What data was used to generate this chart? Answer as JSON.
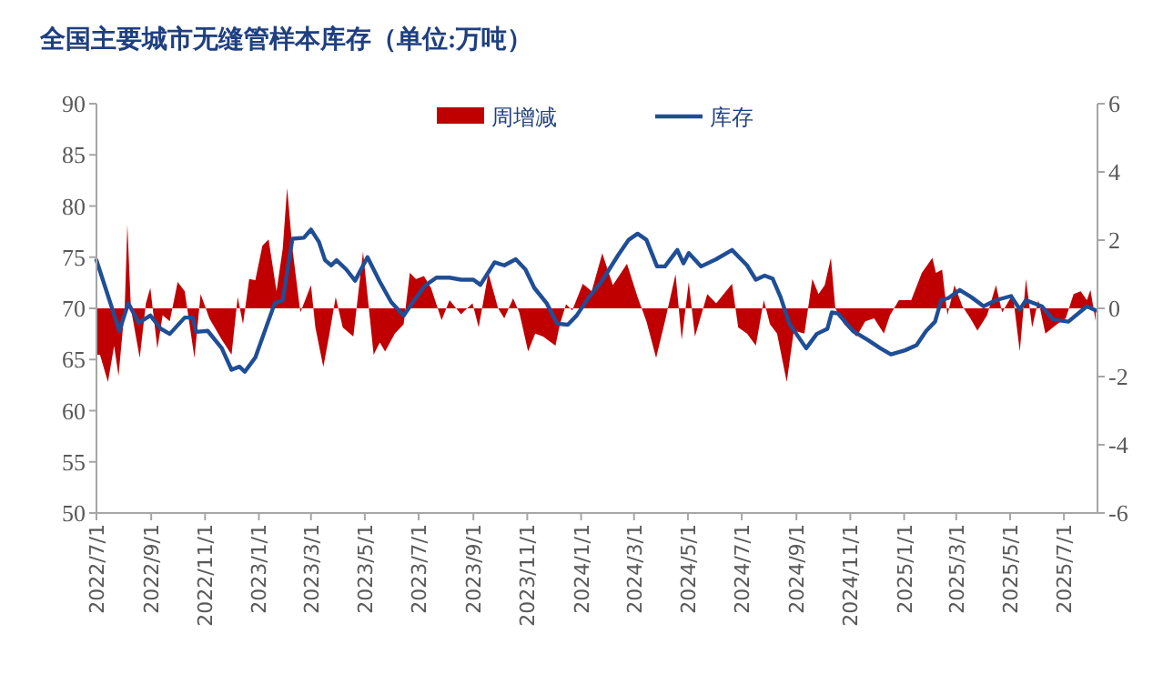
{
  "chart_data": {
    "type": "line",
    "title": "全国主要城市无缝管样本库存（单位:万吨）",
    "xlim": [
      "2022-07-01",
      "2025-08-08"
    ],
    "xticks": [
      {
        "value": "2022-07-01",
        "label": "2022/7/1"
      },
      {
        "value": "2022-09-01",
        "label": "2022/9/1"
      },
      {
        "value": "2022-11-01",
        "label": "2022/11/1"
      },
      {
        "value": "2023-01-01",
        "label": "2023/1/1"
      },
      {
        "value": "2023-03-01",
        "label": "2023/3/1"
      },
      {
        "value": "2023-05-01",
        "label": "2023/5/1"
      },
      {
        "value": "2023-07-01",
        "label": "2023/7/1"
      },
      {
        "value": "2023-09-01",
        "label": "2023/9/1"
      },
      {
        "value": "2023-11-01",
        "label": "2023/11/1"
      },
      {
        "value": "2024-01-01",
        "label": "2024/1/1"
      },
      {
        "value": "2024-03-01",
        "label": "2024/3/1"
      },
      {
        "value": "2024-05-01",
        "label": "2024/5/1"
      },
      {
        "value": "2024-07-01",
        "label": "2024/7/1"
      },
      {
        "value": "2024-09-01",
        "label": "2024/9/1"
      },
      {
        "value": "2024-11-01",
        "label": "2024/11/1"
      },
      {
        "value": "2025-01-01",
        "label": "2025/1/1"
      },
      {
        "value": "2025-03-01",
        "label": "2025/3/1"
      },
      {
        "value": "2025-05-01",
        "label": "2025/5/1"
      },
      {
        "value": "2025-07-01",
        "label": "2025/7/1"
      }
    ],
    "ylim": [
      50,
      90
    ],
    "yticks": [
      50,
      55,
      60,
      65,
      70,
      75,
      80,
      85,
      90
    ],
    "y2lim": [
      -6,
      6
    ],
    "y2ticks": [
      -6,
      -4,
      -2,
      0,
      2,
      4,
      6
    ],
    "legend": "top",
    "series": [
      {
        "name": "周增减",
        "type": "area",
        "axis": "y2",
        "color": "#c00000",
        "x": [
          "2022-07-01",
          "2022-07-05",
          "2022-07-14",
          "2022-07-21",
          "2022-07-26",
          "2022-08-02",
          "2022-08-05",
          "2022-08-09",
          "2022-08-19",
          "2022-08-26",
          "2022-08-31",
          "2022-09-08",
          "2022-09-14",
          "2022-09-22",
          "2022-10-01",
          "2022-10-09",
          "2022-10-20",
          "2022-10-27",
          "2022-11-06",
          "2022-11-20",
          "2022-12-01",
          "2022-12-08",
          "2022-12-14",
          "2022-12-21",
          "2022-12-28",
          "2023-01-05",
          "2023-01-12",
          "2023-01-21",
          "2023-01-28",
          "2023-02-02",
          "2023-02-08",
          "2023-02-17",
          "2023-03-01",
          "2023-03-06",
          "2023-03-15",
          "2023-03-22",
          "2023-03-29",
          "2023-04-06",
          "2023-04-18",
          "2023-04-29",
          "2023-05-11",
          "2023-05-18",
          "2023-05-24",
          "2023-06-04",
          "2023-06-14",
          "2023-06-21",
          "2023-06-28",
          "2023-07-07",
          "2023-07-15",
          "2023-07-27",
          "2023-08-05",
          "2023-08-18",
          "2023-08-31",
          "2023-09-07",
          "2023-09-18",
          "2023-09-29",
          "2023-10-06",
          "2023-10-16",
          "2023-10-23",
          "2023-11-02",
          "2023-11-10",
          "2023-11-19",
          "2023-12-03",
          "2023-12-08",
          "2023-12-15",
          "2023-12-22",
          "2024-01-03",
          "2024-01-13",
          "2024-01-25",
          "2024-02-06",
          "2024-02-22",
          "2024-03-05",
          "2024-03-15",
          "2024-03-26",
          "2024-04-05",
          "2024-04-17",
          "2024-04-24",
          "2024-05-02",
          "2024-05-09",
          "2024-05-23",
          "2024-06-02",
          "2024-06-20",
          "2024-06-27",
          "2024-07-07",
          "2024-07-17",
          "2024-07-26",
          "2024-08-02",
          "2024-08-10",
          "2024-08-21",
          "2024-08-29",
          "2024-09-10",
          "2024-09-19",
          "2024-09-26",
          "2024-10-03",
          "2024-10-10",
          "2024-10-15",
          "2024-10-25",
          "2024-11-08",
          "2024-11-18",
          "2024-11-28",
          "2024-12-09",
          "2024-12-16",
          "2024-12-26",
          "2025-01-09",
          "2025-01-21",
          "2025-02-02",
          "2025-02-06",
          "2025-02-13",
          "2025-02-19",
          "2025-02-27",
          "2025-03-08",
          "2025-03-17",
          "2025-03-25",
          "2025-04-05",
          "2025-04-15",
          "2025-04-22",
          "2025-05-04",
          "2025-05-12",
          "2025-05-19",
          "2025-05-26",
          "2025-06-02",
          "2025-06-10",
          "2025-06-23",
          "2025-07-03",
          "2025-07-12",
          "2025-07-20",
          "2025-07-27",
          "2025-07-31",
          "2025-08-06"
        ],
        "values": [
          -1.36,
          -1.36,
          -2.16,
          -1.1,
          -1.98,
          0,
          2.46,
          0,
          -1.45,
          0.15,
          0.6,
          -1.18,
          -0.2,
          -0.38,
          0.77,
          0.5,
          -1.45,
          0.42,
          -0.3,
          -0.92,
          -1.36,
          0.33,
          -0.47,
          0.86,
          0.83,
          1.84,
          2.02,
          0.5,
          1.75,
          3.53,
          1.75,
          -0.12,
          0.68,
          -0.56,
          -1.72,
          -0.74,
          0.33,
          -0.56,
          -0.83,
          1.66,
          -1.36,
          -1.0,
          -1.27,
          -0.74,
          -0.47,
          1.04,
          0.86,
          0.95,
          0.6,
          -0.35,
          0.24,
          -0.17,
          0.15,
          -0.56,
          1.04,
          0,
          -0.29,
          0.29,
          -0.12,
          -1.27,
          -0.74,
          -0.83,
          -1.09,
          -0.47,
          0.12,
          -0.06,
          0.72,
          0.5,
          1.61,
          0.68,
          1.31,
          0.33,
          -0.38,
          -1.45,
          -0.38,
          1.0,
          -0.92,
          0.77,
          -0.83,
          0.42,
          0.15,
          0.72,
          -0.56,
          -0.74,
          -1.09,
          0.24,
          -0.47,
          -0.74,
          -2.16,
          -0.65,
          -0.74,
          0.86,
          0.42,
          0.68,
          1.48,
          0,
          -0.47,
          -0.83,
          -0.38,
          -0.29,
          -0.74,
          -0.2,
          0.24,
          0.24,
          1.04,
          1.48,
          1.04,
          1.13,
          -0.2,
          0.68,
          0.06,
          -0.29,
          -0.65,
          -0.2,
          0.68,
          -0.12,
          0.42,
          -1.27,
          0.86,
          -0.56,
          0.24,
          -0.74,
          -0.47,
          -0.29,
          0.42,
          0.5,
          0.24,
          0.54,
          -0.38
        ]
      },
      {
        "name": "库存",
        "axis": "y",
        "color": "#1f4e96",
        "x": [
          "2022-07-01",
          "2022-07-27",
          "2022-08-06",
          "2022-08-18",
          "2022-08-31",
          "2022-09-12",
          "2022-09-22",
          "2022-10-09",
          "2022-10-18",
          "2022-10-22",
          "2022-11-04",
          "2022-11-20",
          "2022-12-01",
          "2022-12-10",
          "2022-12-16",
          "2022-12-28",
          "2023-01-09",
          "2023-01-19",
          "2023-01-28",
          "2023-02-08",
          "2023-02-21",
          "2023-03-01",
          "2023-03-10",
          "2023-03-17",
          "2023-03-24",
          "2023-03-30",
          "2023-04-10",
          "2023-04-20",
          "2023-05-04",
          "2023-05-18",
          "2023-05-31",
          "2023-06-14",
          "2023-06-26",
          "2023-07-08",
          "2023-07-21",
          "2023-08-05",
          "2023-08-18",
          "2023-09-01",
          "2023-09-09",
          "2023-09-25",
          "2023-10-06",
          "2023-10-19",
          "2023-10-30",
          "2023-11-09",
          "2023-11-23",
          "2023-12-05",
          "2023-12-17",
          "2023-12-27",
          "2024-01-10",
          "2024-01-24",
          "2024-02-12",
          "2024-02-24",
          "2024-03-05",
          "2024-03-15",
          "2024-03-27",
          "2024-04-05",
          "2024-04-19",
          "2024-04-26",
          "2024-05-02",
          "2024-05-16",
          "2024-06-02",
          "2024-06-20",
          "2024-07-07",
          "2024-07-17",
          "2024-07-27",
          "2024-08-05",
          "2024-08-14",
          "2024-08-24",
          "2024-09-12",
          "2024-09-24",
          "2024-10-06",
          "2024-10-11",
          "2024-10-18",
          "2024-11-04",
          "2024-11-21",
          "2024-12-05",
          "2024-12-17",
          "2025-01-02",
          "2025-01-15",
          "2025-01-26",
          "2025-02-05",
          "2025-02-12",
          "2025-02-20",
          "2025-03-05",
          "2025-03-18",
          "2025-04-01",
          "2025-04-15",
          "2025-05-02",
          "2025-05-12",
          "2025-05-19",
          "2025-06-06",
          "2025-06-19",
          "2025-07-06",
          "2025-07-27",
          "2025-08-06"
        ],
        "values": [
          74.7,
          67.8,
          70.5,
          68.6,
          69.3,
          68.0,
          67.5,
          69.1,
          69.1,
          67.7,
          67.8,
          66.1,
          64.0,
          64.3,
          63.8,
          65.2,
          68.1,
          70.5,
          70.8,
          76.8,
          76.9,
          77.7,
          76.5,
          74.7,
          74.2,
          74.7,
          73.8,
          72.7,
          75.0,
          72.6,
          70.6,
          69.3,
          70.8,
          72.2,
          73.0,
          73.0,
          72.8,
          72.8,
          72.3,
          74.5,
          74.2,
          74.8,
          73.8,
          72.0,
          70.5,
          68.5,
          68.4,
          69.3,
          71.1,
          72.6,
          75.2,
          76.7,
          77.3,
          76.7,
          74.1,
          74.1,
          75.7,
          74.4,
          75.4,
          74.1,
          74.8,
          75.7,
          74.2,
          72.8,
          73.2,
          72.9,
          71.1,
          68.5,
          66.1,
          67.5,
          68.0,
          69.6,
          69.5,
          67.8,
          66.9,
          66.1,
          65.5,
          65.9,
          66.4,
          67.8,
          68.7,
          70.8,
          71.0,
          71.8,
          71.1,
          70.2,
          70.8,
          71.2,
          69.9,
          70.8,
          70.2,
          68.9,
          68.7,
          70.2,
          69.8
        ]
      }
    ]
  }
}
